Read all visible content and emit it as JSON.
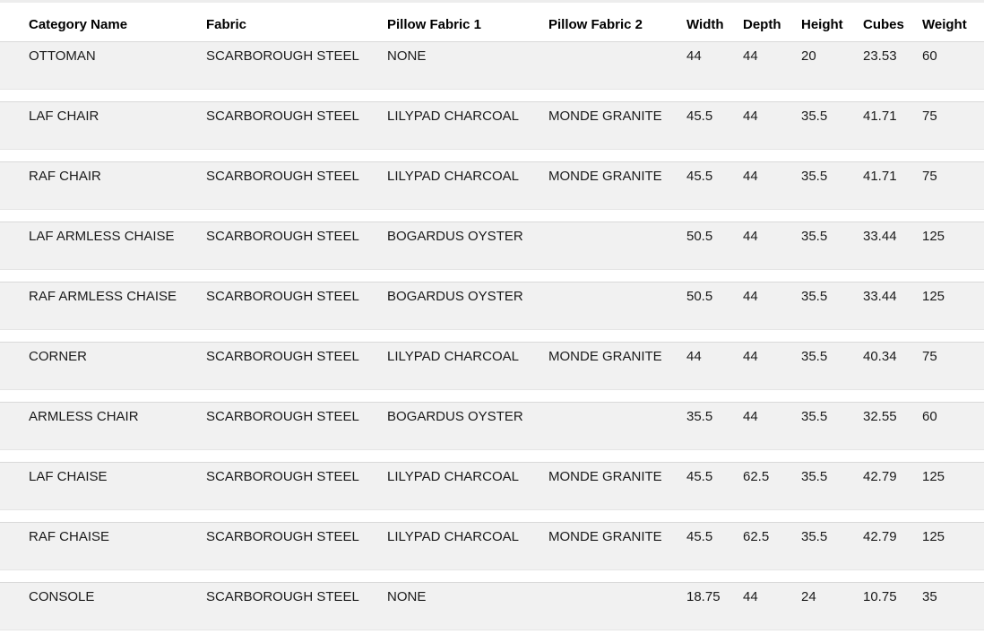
{
  "colors": {
    "row_background": "#f1f1f1",
    "row_border_top": "#d9d9d9",
    "gap_background": "#ffffff",
    "header_text": "#000000",
    "cell_text": "#1a1a1a",
    "top_strip": "#ededed"
  },
  "table": {
    "columns": [
      "Category Name",
      "Fabric",
      "Pillow Fabric 1",
      "Pillow Fabric 2",
      "Width",
      "Depth",
      "Height",
      "Cubes",
      "Weight"
    ],
    "rows": [
      {
        "category": "OTTOMAN",
        "fabric": "SCARBOROUGH STEEL",
        "pillow1": "NONE",
        "pillow2": "",
        "width": "44",
        "depth": "44",
        "height": "20",
        "cubes": "23.53",
        "weight": "60"
      },
      {
        "category": "LAF CHAIR",
        "fabric": "SCARBOROUGH STEEL",
        "pillow1": "LILYPAD CHARCOAL",
        "pillow2": "MONDE GRANITE",
        "width": "45.5",
        "depth": "44",
        "height": "35.5",
        "cubes": "41.71",
        "weight": "75"
      },
      {
        "category": "RAF CHAIR",
        "fabric": "SCARBOROUGH STEEL",
        "pillow1": "LILYPAD CHARCOAL",
        "pillow2": "MONDE GRANITE",
        "width": "45.5",
        "depth": "44",
        "height": "35.5",
        "cubes": "41.71",
        "weight": "75"
      },
      {
        "category": "LAF ARMLESS CHAISE",
        "fabric": "SCARBOROUGH STEEL",
        "pillow1": "BOGARDUS OYSTER",
        "pillow2": "",
        "width": "50.5",
        "depth": "44",
        "height": "35.5",
        "cubes": "33.44",
        "weight": "125"
      },
      {
        "category": "RAF ARMLESS CHAISE",
        "fabric": "SCARBOROUGH STEEL",
        "pillow1": "BOGARDUS OYSTER",
        "pillow2": "",
        "width": "50.5",
        "depth": "44",
        "height": "35.5",
        "cubes": "33.44",
        "weight": "125"
      },
      {
        "category": "CORNER",
        "fabric": "SCARBOROUGH STEEL",
        "pillow1": "LILYPAD CHARCOAL",
        "pillow2": "MONDE GRANITE",
        "width": "44",
        "depth": "44",
        "height": "35.5",
        "cubes": "40.34",
        "weight": "75"
      },
      {
        "category": "ARMLESS CHAIR",
        "fabric": "SCARBOROUGH STEEL",
        "pillow1": "BOGARDUS OYSTER",
        "pillow2": "",
        "width": "35.5",
        "depth": "44",
        "height": "35.5",
        "cubes": "32.55",
        "weight": "60"
      },
      {
        "category": "LAF CHAISE",
        "fabric": "SCARBOROUGH STEEL",
        "pillow1": "LILYPAD CHARCOAL",
        "pillow2": "MONDE GRANITE",
        "width": "45.5",
        "depth": "62.5",
        "height": "35.5",
        "cubes": "42.79",
        "weight": "125"
      },
      {
        "category": "RAF CHAISE",
        "fabric": "SCARBOROUGH STEEL",
        "pillow1": "LILYPAD CHARCOAL",
        "pillow2": "MONDE GRANITE",
        "width": "45.5",
        "depth": "62.5",
        "height": "35.5",
        "cubes": "42.79",
        "weight": "125"
      },
      {
        "category": "CONSOLE",
        "fabric": "SCARBOROUGH STEEL",
        "pillow1": "NONE",
        "pillow2": "",
        "width": "18.75",
        "depth": "44",
        "height": "24",
        "cubes": "10.75",
        "weight": "35"
      }
    ]
  }
}
